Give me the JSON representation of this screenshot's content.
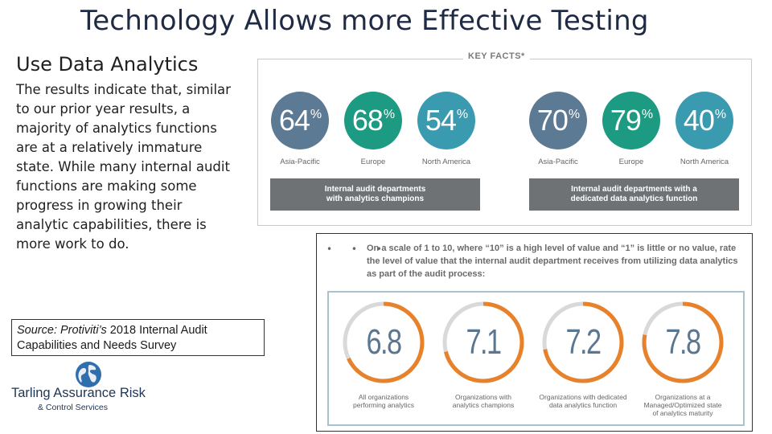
{
  "slide": {
    "title": "Technology Allows more Effective Testing",
    "subtitle": "Use Data Analytics",
    "body": "The results indicate that, similar to our prior year results, a majority of analytics functions are at a relatively immature state.  While many internal audit functions are making some progress in growing their analytic capabilities, there is more work to do.",
    "source_italic": "Source: Protiviti’s",
    "source_rest": " 2018 Internal Audit Capabilities and Needs Survey"
  },
  "logo": {
    "name": "Tarling Assurance Risk",
    "sub": "& Control Services"
  },
  "key_facts": {
    "title": "KEY FACTS*",
    "stats": [
      {
        "value": "64",
        "unit": "%",
        "region": "Asia-Pacific"
      },
      {
        "value": "68",
        "unit": "%",
        "region": "Europe"
      },
      {
        "value": "54",
        "unit": "%",
        "region": "North America"
      },
      {
        "value": "70",
        "unit": "%",
        "region": "Asia-Pacific"
      },
      {
        "value": "79",
        "unit": "%",
        "region": "Europe"
      },
      {
        "value": "40",
        "unit": "%",
        "region": "North America"
      }
    ],
    "bar_left_line1": "Internal audit departments",
    "bar_left_line2": "with analytics champions",
    "bar_right_line1": "Internal audit departments with a",
    "bar_right_line2": "dedicated data analytics function"
  },
  "survey": {
    "dots": "• • •",
    "question": "On a scale of 1 to 10, where “10” is a high level of value and “1” is little or no value, rate the level of value that the internal audit department receives from utilizing data analytics as part of the audit process:",
    "rings": [
      {
        "value": "6.8",
        "label_line1": "All organizations",
        "label_line2": "performing analytics"
      },
      {
        "value": "7.1",
        "label_line1": "Organizations with",
        "label_line2": "analytics champions"
      },
      {
        "value": "7.2",
        "label_line1": "Organizations with dedicated",
        "label_line2": "data analytics function"
      },
      {
        "value": "7.8",
        "label_line1": "Organizations at a",
        "label_line2": "Managed/Optimized state",
        "label_line3": "of analytics maturity"
      }
    ]
  },
  "colors": {
    "ring_fill": "#e8822a",
    "ring_track": "#d9d9d9"
  }
}
